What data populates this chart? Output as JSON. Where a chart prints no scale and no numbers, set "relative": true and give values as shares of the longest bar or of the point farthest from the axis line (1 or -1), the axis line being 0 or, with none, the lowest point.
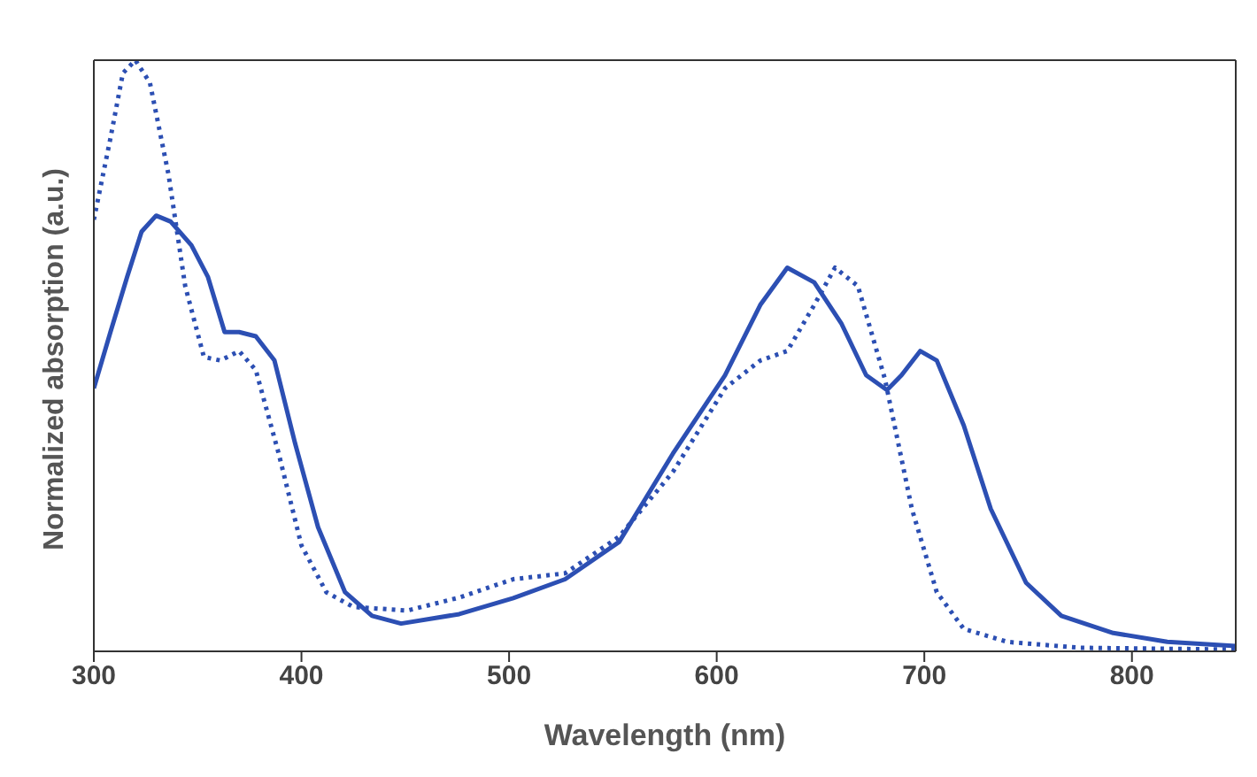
{
  "chart_data": {
    "type": "line",
    "xlabel": "Wavelength (nm)",
    "ylabel": "Normalized absorption (a.u.)",
    "relative": true,
    "xlim": [
      300,
      850
    ],
    "xticks": [
      300,
      400,
      500,
      600,
      700,
      800
    ],
    "legend": false,
    "marker": "none",
    "series": [
      {
        "color": "#2c4fb3",
        "line_style": "solid",
        "x": [
          300,
          308,
          316,
          323,
          330,
          337,
          347,
          355,
          363,
          370,
          378,
          387,
          397,
          408,
          421,
          434,
          448,
          476,
          502,
          527,
          553,
          579,
          604,
          621,
          634,
          647,
          660,
          672,
          682,
          689,
          698,
          706,
          719,
          732,
          749,
          766,
          791,
          817,
          850
        ],
        "values": [
          0.445,
          0.54,
          0.633,
          0.71,
          0.737,
          0.727,
          0.687,
          0.633,
          0.54,
          0.54,
          0.533,
          0.492,
          0.351,
          0.21,
          0.1,
          0.06,
          0.047,
          0.063,
          0.09,
          0.122,
          0.185,
          0.335,
          0.467,
          0.586,
          0.649,
          0.624,
          0.555,
          0.467,
          0.442,
          0.467,
          0.508,
          0.492,
          0.382,
          0.241,
          0.116,
          0.06,
          0.031,
          0.016,
          0.009
        ]
      },
      {
        "color": "#2c4fb3",
        "line_style": "dotted",
        "x": [
          300,
          308,
          314,
          320,
          327,
          336,
          344,
          353,
          361,
          370,
          378,
          389,
          400,
          412,
          425,
          451,
          476,
          502,
          527,
          553,
          579,
          604,
          621,
          634,
          647,
          657,
          668,
          681,
          694,
          706,
          719,
          740,
          775,
          850
        ],
        "values": [
          0.73,
          0.868,
          0.978,
          1.0,
          0.962,
          0.806,
          0.618,
          0.498,
          0.492,
          0.508,
          0.476,
          0.335,
          0.179,
          0.1,
          0.075,
          0.069,
          0.091,
          0.122,
          0.132,
          0.194,
          0.304,
          0.445,
          0.492,
          0.508,
          0.586,
          0.649,
          0.618,
          0.461,
          0.241,
          0.1,
          0.038,
          0.016,
          0.006,
          0.003
        ]
      }
    ]
  }
}
